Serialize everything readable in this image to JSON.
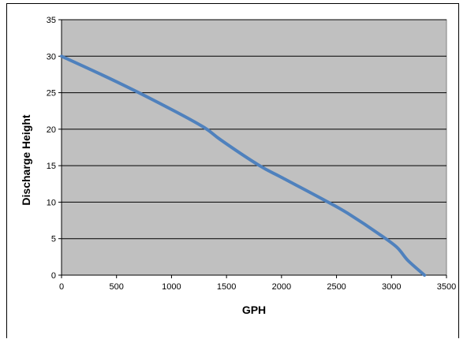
{
  "chart_data": {
    "type": "line",
    "title": "",
    "xlabel": "GPH",
    "ylabel": "Discharge Height",
    "xlim": [
      0,
      3500
    ],
    "ylim": [
      0,
      35
    ],
    "x_ticks": [
      0,
      500,
      1000,
      1500,
      2000,
      2500,
      3000,
      3500
    ],
    "y_ticks": [
      0,
      5,
      10,
      15,
      20,
      25,
      30,
      35
    ],
    "grid": "horizontal",
    "legend": "none",
    "plot_background": "#c0c0c0",
    "series_color": "#4f81bd",
    "series": [
      {
        "x": [
          0,
          500,
          1000,
          1300,
          1450,
          1800,
          2000,
          2400,
          2600,
          2900,
          3050,
          3150,
          3300
        ],
        "y": [
          30,
          26.5,
          22.7,
          20.2,
          18.5,
          15,
          13.4,
          10.2,
          8.5,
          5.5,
          3.8,
          2,
          0
        ]
      }
    ]
  }
}
